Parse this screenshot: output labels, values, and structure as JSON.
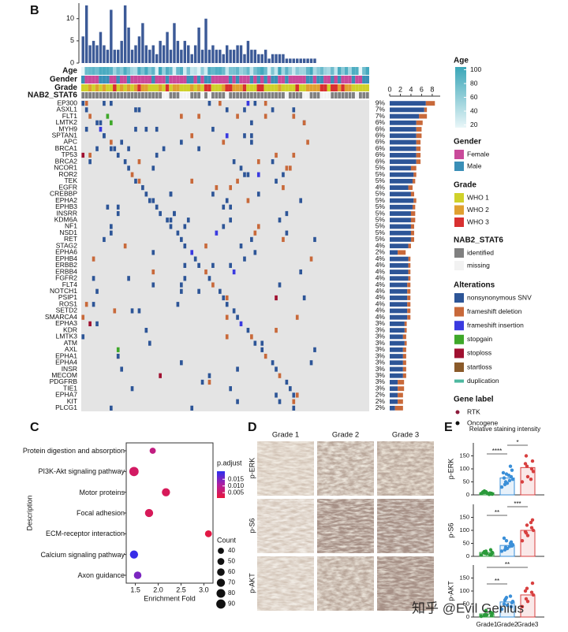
{
  "panels": {
    "b": "B",
    "c": "C",
    "d": "D",
    "e": "E"
  },
  "oncoprint": {
    "tracks": [
      "Age",
      "Gender",
      "Grade",
      "NAB2_STAT6"
    ],
    "gene_pct": [
      "9%",
      "7%",
      "7%",
      "6%",
      "6%",
      "6%",
      "6%",
      "6%",
      "6%",
      "6%",
      "5%",
      "5%",
      "5%",
      "4%",
      "5%",
      "5%",
      "5%",
      "5%",
      "5%",
      "5%",
      "5%",
      "5%",
      "4%",
      "2%",
      "4%",
      "4%",
      "4%",
      "4%",
      "4%",
      "4%",
      "4%",
      "4%",
      "4%",
      "4%",
      "3%",
      "3%",
      "3%",
      "3%",
      "3%",
      "3%",
      "3%",
      "3%",
      "3%",
      "3%",
      "3%",
      "2%",
      "2%",
      "2%"
    ],
    "rtk": [
      false,
      false,
      true,
      true,
      false,
      false,
      false,
      false,
      false,
      false,
      false,
      true,
      true,
      true,
      false,
      true,
      true,
      true,
      false,
      false,
      false,
      true,
      false,
      true,
      true,
      true,
      true,
      true,
      true,
      false,
      false,
      true,
      false,
      false,
      true,
      true,
      true,
      false,
      true,
      true,
      true,
      true,
      false,
      true,
      true,
      true,
      true,
      false
    ],
    "legends": {
      "age": {
        "title": "Age",
        "lim": [
          16,
          104
        ],
        "ticks": [
          20,
          40,
          60,
          80,
          100
        ]
      },
      "gender": {
        "title": "Gender",
        "items": [
          {
            "label": "Female",
            "color": "#c94a9a"
          },
          {
            "label": "Male",
            "color": "#3a8fb7"
          }
        ]
      },
      "grade": {
        "title": "Grade",
        "items": [
          {
            "label": "WHO 1",
            "color": "#cfd12a"
          },
          {
            "label": "WHO 2",
            "color": "#e0a030"
          },
          {
            "label": "WHO 3",
            "color": "#d83030"
          }
        ]
      },
      "nab2": {
        "title": "NAB2_STAT6",
        "items": [
          {
            "label": "identified",
            "color": "#808080"
          },
          {
            "label": "missing",
            "color": "#f2f2f2"
          }
        ]
      },
      "alterations": {
        "title": "Alterations",
        "items": [
          {
            "label": "nonsynonymous SNV",
            "color": "#2d5597"
          },
          {
            "label": "frameshift deletion",
            "color": "#c8693a"
          },
          {
            "label": "frameshift insertion",
            "color": "#3a3ae0"
          },
          {
            "label": "stopgain",
            "color": "#3fa82a"
          },
          {
            "label": "stoploss",
            "color": "#a01030"
          },
          {
            "label": "startloss",
            "color": "#8a5a2a"
          },
          {
            "label": "duplication",
            "color": "#4db8a0"
          }
        ]
      },
      "gene_label": {
        "title": "Gene label",
        "items": [
          {
            "label": "RTK",
            "color": "#8b1a3a"
          },
          {
            "label": "Oncogene",
            "color": "#111111"
          }
        ]
      }
    }
  },
  "panel_d": {
    "columns": [
      "Grade 1",
      "Grade 2",
      "Grade 3"
    ],
    "rows": [
      "p-ERK",
      "p-S6",
      "p-AKT"
    ]
  },
  "panel_e_title": "Relative staining intensity",
  "watermark": "知乎 @Evil Genius",
  "chart_data": [
    {
      "type": "bar",
      "color": "#3c5a97",
      "ylim": [
        0,
        13.5
      ],
      "yticks": [
        0,
        5,
        10
      ],
      "values": [
        6,
        13,
        4,
        5,
        4,
        7,
        4,
        3,
        12,
        3,
        3,
        5,
        13,
        8,
        3,
        4,
        6,
        9,
        4,
        3,
        4,
        2,
        5,
        4,
        7,
        3,
        9,
        5,
        3,
        5,
        4,
        2,
        4,
        8,
        3,
        10,
        3,
        4,
        3,
        3,
        2,
        4,
        3,
        3,
        4,
        4,
        2,
        5,
        3,
        3,
        2,
        2,
        3,
        1,
        2,
        2,
        2,
        2,
        1,
        1,
        1,
        1,
        1,
        1,
        1,
        1,
        1,
        0,
        0,
        0,
        0,
        0,
        0,
        0,
        0,
        0,
        0,
        0,
        0,
        0,
        0,
        0
      ]
    },
    {
      "type": "hbar",
      "xlim": [
        0,
        9.5
      ],
      "xticks": [
        0,
        2,
        4,
        6,
        8
      ],
      "categories": [
        "EP300",
        "ASXL1",
        "FLT1",
        "LMTK2",
        "MYH9",
        "SPTAN1",
        "APC",
        "BRCA1",
        "TP53",
        "BRCA2",
        "NCOR1",
        "ROR2",
        "TEK",
        "EGFR",
        "CREBBP",
        "EPHA2",
        "EPHB3",
        "INSRR",
        "KDM6A",
        "NF1",
        "NSD1",
        "RET",
        "STAG2",
        "EPHA6",
        "EPHB4",
        "ERBB2",
        "ERBB4",
        "FGFR2",
        "FLT4",
        "NOTCH1",
        "PSIP1",
        "ROS1",
        "SETD2",
        "SMARCA4",
        "EPHA3",
        "KDR",
        "LMTK3",
        "ATM",
        "AXL",
        "EPHA1",
        "EPHA4",
        "INSR",
        "MECOM",
        "PDGFRB",
        "TIE1",
        "EPHA7",
        "KIT",
        "PLCG1"
      ],
      "series": [
        {
          "name": "nonsynonymous SNV",
          "color": "#2d5597",
          "values": [
            6.8,
            6.5,
            5.5,
            5.0,
            5.0,
            5.0,
            5.0,
            5.0,
            5.0,
            5.0,
            4.0,
            4.5,
            4.3,
            3.5,
            4.0,
            4.5,
            4.3,
            4.0,
            4.0,
            4.0,
            4.0,
            4.0,
            3.5,
            1.5,
            3.5,
            3.5,
            3.5,
            3.5,
            3.3,
            3.3,
            3.3,
            3.3,
            3.3,
            3.3,
            2.8,
            2.8,
            2.5,
            2.8,
            2.5,
            2.5,
            2.5,
            2.5,
            2.5,
            1.5,
            1.5,
            1.5,
            1.5,
            1.0
          ]
        },
        {
          "name": "frameshift deletion",
          "color": "#c8693a",
          "values": [
            1.7,
            0.5,
            1.5,
            1.2,
            1.0,
            1.0,
            0.8,
            0.8,
            0.8,
            0.8,
            1.0,
            0.5,
            0.5,
            0.8,
            0.6,
            0.5,
            0.5,
            0.8,
            0.8,
            0.6,
            0.6,
            0.6,
            0.5,
            1.5,
            0.4,
            0.4,
            0.4,
            0.4,
            0.6,
            0.6,
            0.6,
            0.6,
            0.6,
            0.6,
            0.4,
            0.4,
            0.6,
            0.4,
            0.6,
            0.6,
            0.6,
            0.6,
            0.6,
            1.2,
            1.2,
            1.0,
            1.0,
            1.5
          ]
        }
      ]
    },
    {
      "type": "scatter",
      "categories": [
        "Protein digestion and absorption",
        "PI3K-Akt signaling pathway",
        "Motor proteins",
        "Focal adhesion",
        "ECM-receptor interaction",
        "Calcium signaling pathway",
        "Axon guidance"
      ],
      "x": [
        1.88,
        1.47,
        2.17,
        1.8,
        3.1,
        1.47,
        1.55
      ],
      "size": [
        40,
        90,
        70,
        70,
        50,
        70,
        60
      ],
      "color_values": [
        0.008,
        0.005,
        0.004,
        0.004,
        0.002,
        0.02,
        0.015
      ],
      "xlim": [
        1.3,
        3.2
      ],
      "xticks": [
        1.5,
        {
          "value": 2,
          "label": "2.0"
        },
        2.5,
        {
          "value": 3,
          "label": "3.0"
        }
      ],
      "xlabel": "Enrichment Fold",
      "ylabel": "Description",
      "color_legend": {
        "title": "p.adjust",
        "lim": [
          0.001,
          0.021
        ],
        "ticks": [
          0.015,
          {
            "value": 0.01,
            "label": "0.010"
          },
          0.005
        ]
      },
      "size_legend": {
        "title": "Count",
        "values": [
          40,
          50,
          60,
          70,
          80,
          90
        ]
      }
    },
    {
      "type": "dotbar",
      "ylabel": "p-ERK",
      "ylim": [
        0,
        200
      ],
      "yticks": [
        0,
        50,
        100,
        150
      ],
      "colors": [
        "#2a9a3a",
        "#3a8fd8",
        "#d84040"
      ],
      "values": [
        8,
        65,
        105
      ],
      "significance": [
        "****",
        "*"
      ],
      "points": [
        [
          5,
          8,
          3,
          12,
          6,
          10,
          4,
          15,
          7,
          9,
          2,
          11
        ],
        [
          30,
          45,
          60,
          80,
          95,
          50,
          70,
          40,
          110,
          65,
          55,
          85,
          75
        ],
        [
          50,
          70,
          90,
          110,
          130,
          150,
          100,
          120,
          60
        ]
      ]
    },
    {
      "type": "dotbar",
      "ylabel": "p-S6",
      "ylim": [
        0,
        200
      ],
      "yticks": [
        0,
        50,
        100,
        150
      ],
      "colors": [
        "#2a9a3a",
        "#3a8fd8",
        "#d84040"
      ],
      "values": [
        15,
        42,
        100
      ],
      "significance": [
        "**",
        "***"
      ],
      "points": [
        [
          5,
          10,
          15,
          20,
          8,
          12,
          25,
          18,
          6,
          14
        ],
        [
          20,
          30,
          45,
          60,
          40,
          35,
          55,
          25,
          50,
          70,
          38
        ],
        [
          60,
          80,
          100,
          120,
          140,
          90,
          110,
          95,
          130
        ]
      ]
    },
    {
      "type": "dotbar",
      "ylabel": "p-AKT",
      "ylim": [
        0,
        200
      ],
      "yticks": [
        0,
        50,
        100,
        150
      ],
      "colors": [
        "#2a9a3a",
        "#3a8fd8",
        "#d84040"
      ],
      "values": [
        12,
        58,
        85
      ],
      "significance": [
        "**",
        "**"
      ],
      "categories": [
        "Grade1",
        "Grade2",
        "Grade3"
      ],
      "points": [
        [
          3,
          8,
          15,
          25,
          5,
          10,
          18,
          6
        ],
        [
          30,
          45,
          60,
          75,
          55,
          70,
          40,
          65,
          80,
          50
        ],
        [
          40,
          60,
          85,
          110,
          130,
          70,
          95,
          100
        ]
      ]
    }
  ]
}
